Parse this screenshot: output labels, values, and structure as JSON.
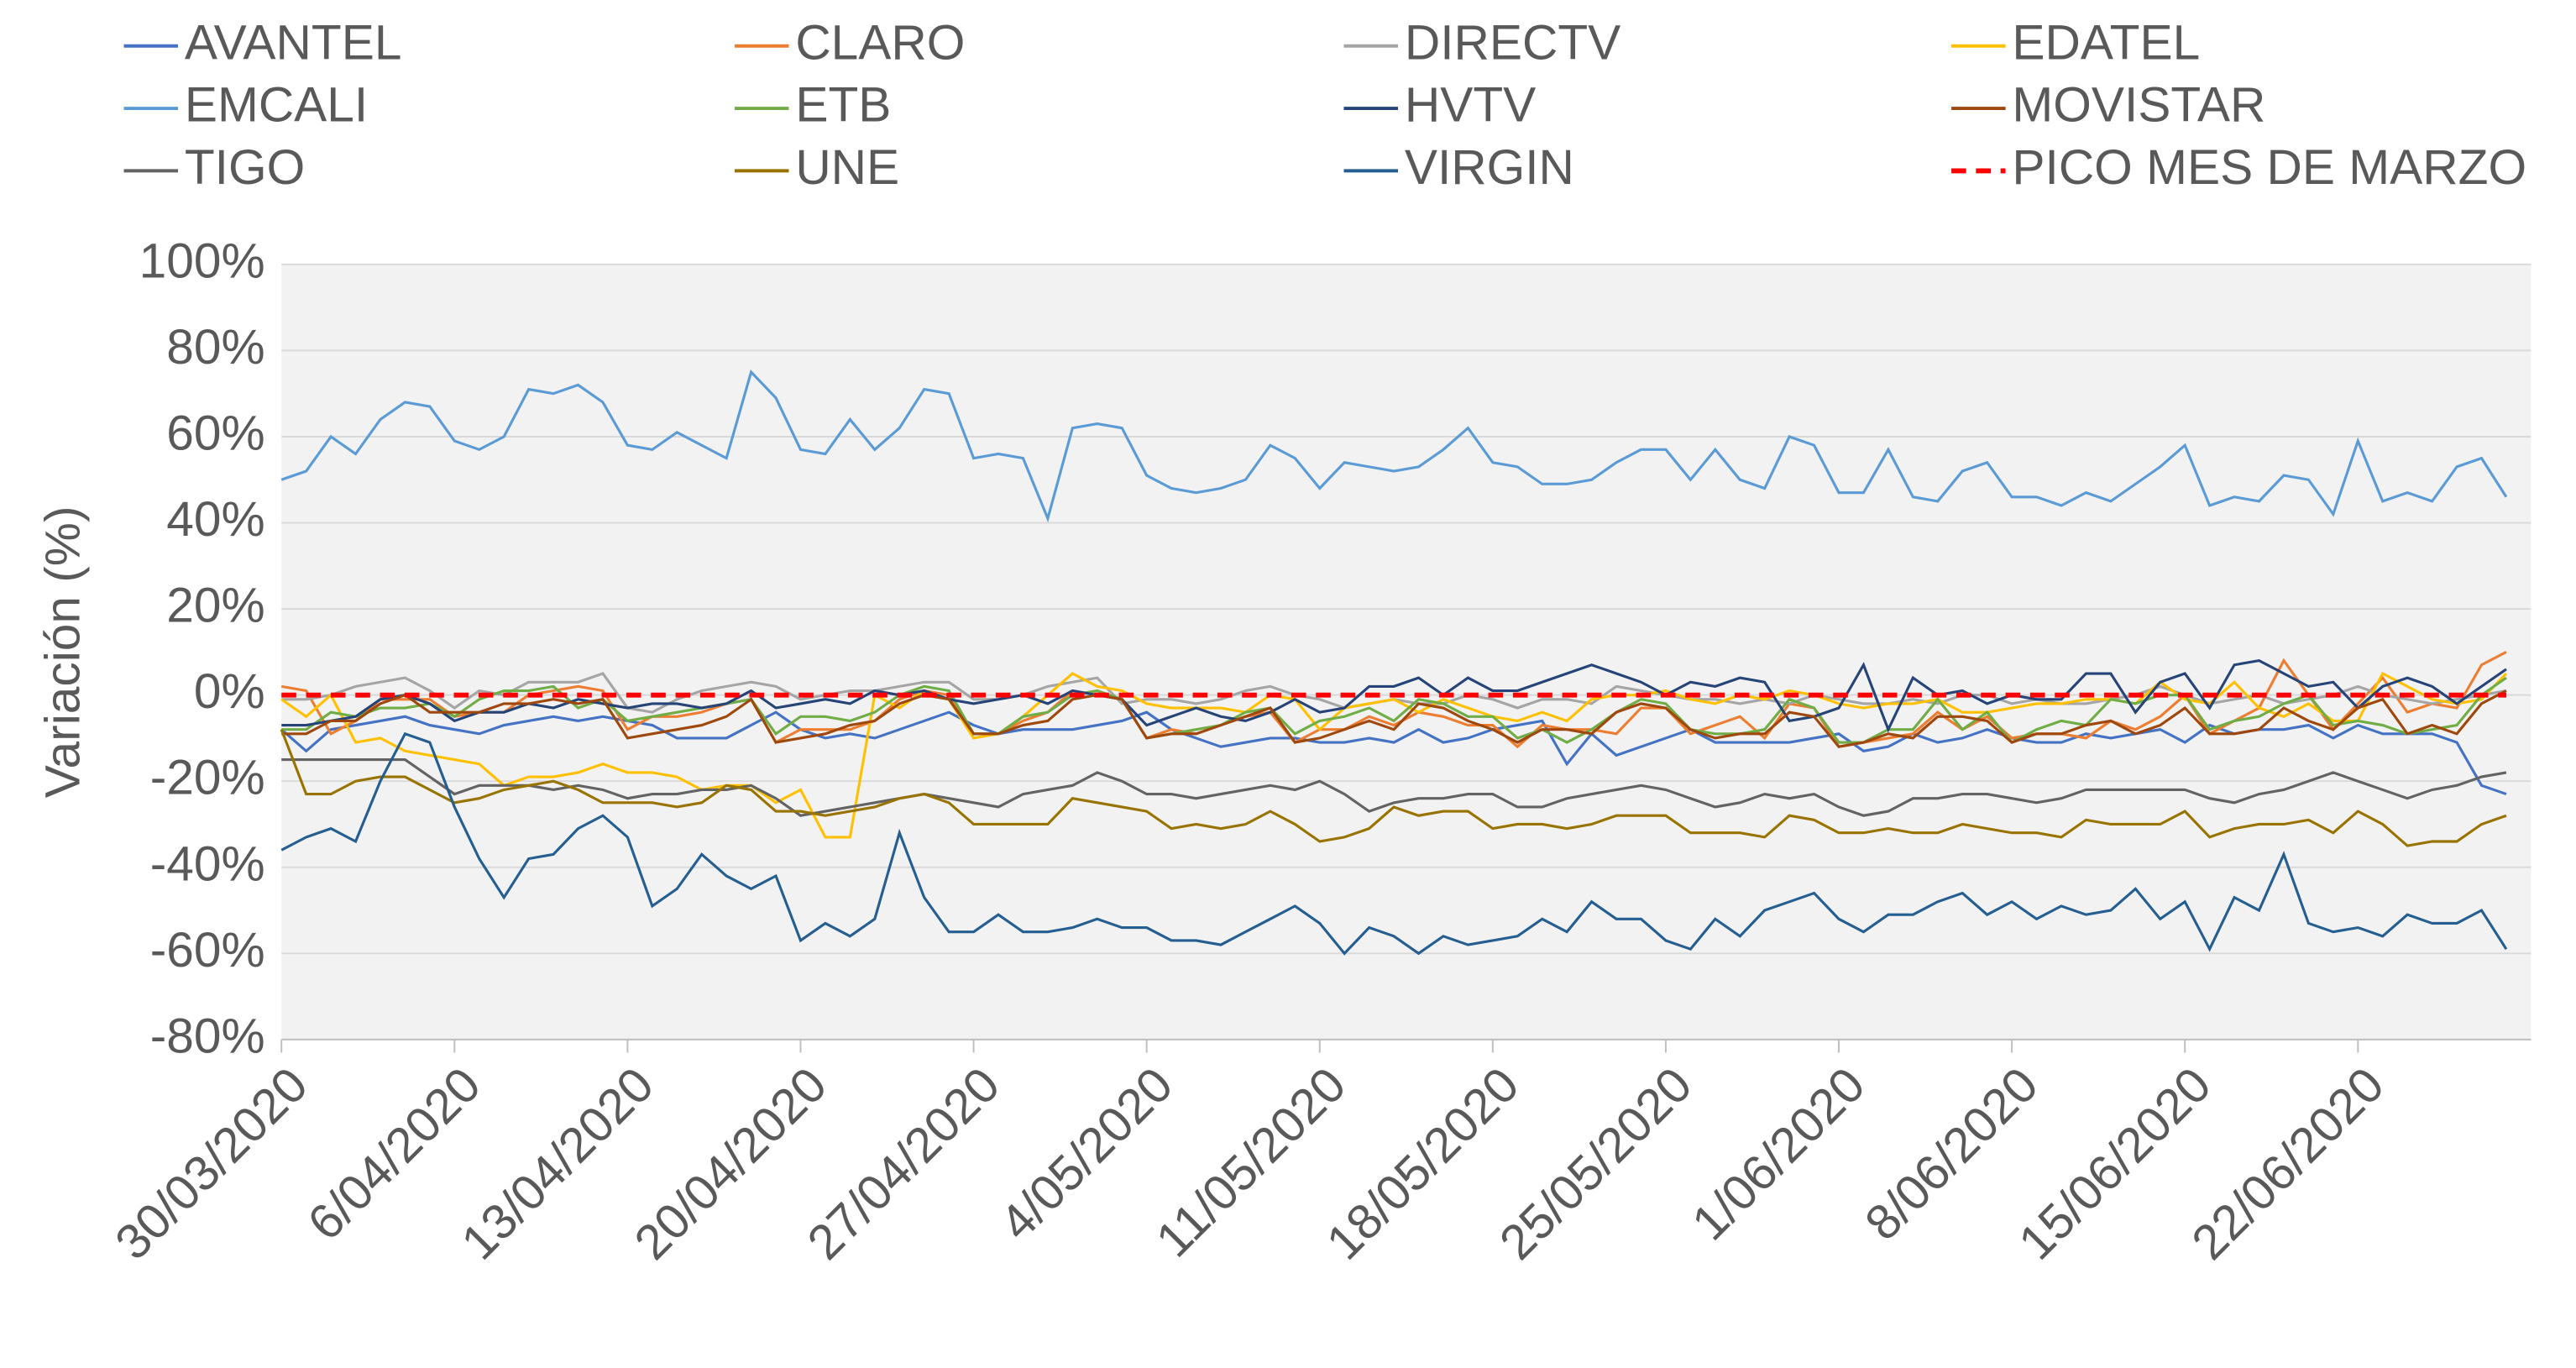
{
  "chart_data": {
    "type": "line",
    "y_label": "Variación (%)",
    "categories": [
      "30/03/2020",
      null,
      null,
      null,
      null,
      null,
      null,
      "6/04/2020",
      null,
      null,
      null,
      null,
      null,
      null,
      "13/04/2020",
      null,
      null,
      null,
      null,
      null,
      null,
      "20/04/2020",
      null,
      null,
      null,
      null,
      null,
      null,
      "27/04/2020",
      null,
      null,
      null,
      null,
      null,
      null,
      "4/05/2020",
      null,
      null,
      null,
      null,
      null,
      null,
      "11/05/2020",
      null,
      null,
      null,
      null,
      null,
      null,
      "18/05/2020",
      null,
      null,
      null,
      null,
      null,
      null,
      "25/05/2020",
      null,
      null,
      null,
      null,
      null,
      null,
      "1/06/2020",
      null,
      null,
      null,
      null,
      null,
      null,
      "8/06/2020",
      null,
      null,
      null,
      null,
      null,
      null,
      "15/06/2020",
      null,
      null,
      null,
      null,
      null,
      null,
      "22/06/2020",
      null,
      null,
      null,
      null,
      null,
      null
    ],
    "ylim": [
      -80,
      100
    ],
    "yticks": [
      {
        "value": -80,
        "label": "-80%"
      },
      {
        "value": -60,
        "label": "-60%"
      },
      {
        "value": -40,
        "label": "-40%"
      },
      {
        "value": -20,
        "label": "-20%"
      },
      {
        "value": 0,
        "label": "0%"
      },
      {
        "value": 20,
        "label": "20%"
      },
      {
        "value": 40,
        "label": "40%"
      },
      {
        "value": 60,
        "label": "60%"
      },
      {
        "value": 80,
        "label": "80%"
      },
      {
        "value": 100,
        "label": "100%"
      }
    ],
    "grid": true,
    "legend": "top",
    "series": [
      {
        "name": "AVANTEL",
        "color": "#4472c4",
        "values": [
          -8,
          -13,
          -8,
          -7,
          -6,
          -5,
          -7,
          -8,
          -9,
          -7,
          -6,
          -5,
          -6,
          -5,
          -6,
          -7,
          -10,
          -10,
          -10,
          -7,
          -4,
          -8,
          -10,
          -9,
          -10,
          -8,
          -6,
          -4,
          -7,
          -9,
          -8,
          -8,
          -8,
          -7,
          -6,
          -4,
          -8,
          -10,
          -12,
          -11,
          -10,
          -10,
          -11,
          -11,
          -10,
          -11,
          -8,
          -11,
          -10,
          -8,
          -7,
          -6,
          -16,
          -9,
          -14,
          -12,
          -10,
          -8,
          -11,
          -11,
          -11,
          -11,
          -10,
          -9,
          -13,
          -12,
          -9,
          -11,
          -10,
          -8,
          -10,
          -11,
          -11,
          -9,
          -10,
          -9,
          -8,
          -11,
          -7,
          -9,
          -8,
          -8,
          -7,
          -10,
          -7,
          -9,
          -9,
          -9,
          -11,
          -21,
          -23
        ]
      },
      {
        "name": "CLARO",
        "color": "#ed7d31",
        "values": [
          2,
          1,
          -9,
          -6,
          -1,
          -1,
          -1,
          -5,
          -4,
          -4,
          0,
          1,
          2,
          1,
          -8,
          -5,
          -5,
          -4,
          -2,
          -1,
          -11,
          -8,
          -8,
          -8,
          -6,
          -1,
          1,
          0,
          -9,
          -9,
          -6,
          -4,
          1,
          0,
          -1,
          -10,
          -8,
          -9,
          -7,
          -5,
          -4,
          -11,
          -8,
          -8,
          -5,
          -7,
          -4,
          -5,
          -7,
          -7,
          -12,
          -7,
          -8,
          -8,
          -9,
          -3,
          -3,
          -9,
          -7,
          -5,
          -10,
          -2,
          -3,
          -12,
          -11,
          -10,
          -9,
          -4,
          -8,
          -5,
          -10,
          -9,
          -9,
          -10,
          -6,
          -8,
          -5,
          0,
          -9,
          -6,
          -3,
          8,
          0,
          -8,
          -2,
          4,
          -4,
          -2,
          -3,
          7,
          10
        ]
      },
      {
        "name": "DIRECTV",
        "color": "#a5a5a5",
        "values": [
          -1,
          -1,
          0,
          2,
          3,
          4,
          1,
          -3,
          1,
          0,
          3,
          3,
          3,
          5,
          -3,
          -4,
          -1,
          1,
          2,
          3,
          2,
          -1,
          0,
          1,
          1,
          2,
          3,
          3,
          -1,
          -1,
          0,
          2,
          3,
          4,
          -2,
          -1,
          -1,
          -2,
          -1,
          1,
          2,
          0,
          -1,
          -3,
          -2,
          -1,
          -2,
          -2,
          0,
          -1,
          -3,
          -1,
          -1,
          -2,
          2,
          1,
          0,
          -1,
          -1,
          -2,
          -1,
          -2,
          0,
          -1,
          -2,
          -2,
          -1,
          -2,
          0,
          0,
          -2,
          -1,
          -2,
          -2,
          -1,
          0,
          2,
          0,
          -2,
          -1,
          0,
          -2,
          -1,
          0,
          2,
          0,
          -1,
          -2,
          -1,
          0,
          1
        ]
      },
      {
        "name": "EDATEL",
        "color": "#ffc000",
        "values": [
          -1,
          -5,
          0,
          -11,
          -10,
          -13,
          -14,
          -15,
          -16,
          -21,
          -19,
          -19,
          -18,
          -16,
          -18,
          -18,
          -19,
          -22,
          -21,
          -21,
          -25,
          -22,
          -33,
          -33,
          0,
          -3,
          1,
          -1,
          -10,
          -9,
          -5,
          0,
          5,
          2,
          1,
          -2,
          -3,
          -3,
          -3,
          -4,
          0,
          -1,
          -8,
          -3,
          -2,
          -1,
          -4,
          -1,
          -3,
          -5,
          -6,
          -4,
          -6,
          -1,
          0,
          0,
          1,
          -1,
          -2,
          0,
          -1,
          1,
          0,
          -2,
          -3,
          -2,
          -2,
          -1,
          -4,
          -4,
          -3,
          -2,
          -2,
          -1,
          -1,
          -2,
          3,
          -1,
          -2,
          3,
          -3,
          -5,
          -2,
          -6,
          -6,
          5,
          2,
          -1,
          -2,
          -1,
          5
        ]
      },
      {
        "name": "EMCALI",
        "color": "#5b9bd5",
        "values": [
          50,
          52,
          60,
          56,
          64,
          68,
          67,
          59,
          57,
          60,
          71,
          70,
          72,
          68,
          58,
          57,
          61,
          58,
          55,
          75,
          69,
          57,
          56,
          64,
          57,
          62,
          71,
          70,
          55,
          56,
          55,
          41,
          62,
          63,
          62,
          51,
          48,
          47,
          48,
          50,
          58,
          55,
          48,
          54,
          53,
          52,
          53,
          57,
          62,
          54,
          53,
          49,
          49,
          50,
          54,
          57,
          57,
          50,
          57,
          50,
          48,
          60,
          58,
          47,
          47,
          57,
          46,
          45,
          52,
          54,
          46,
          46,
          44,
          47,
          45,
          49,
          53,
          58,
          44,
          46,
          45,
          51,
          50,
          42,
          59,
          45,
          47,
          45,
          53,
          55,
          46
        ]
      },
      {
        "name": "ETB",
        "color": "#70ad47",
        "values": [
          -8,
          -8,
          -4,
          -5,
          -3,
          -3,
          -2,
          -5,
          -1,
          1,
          1,
          2,
          -3,
          -1,
          -6,
          -5,
          -4,
          -3,
          -2,
          -1,
          -9,
          -5,
          -5,
          -6,
          -4,
          0,
          2,
          1,
          -9,
          -9,
          -5,
          -4,
          0,
          1,
          -1,
          -10,
          -9,
          -8,
          -7,
          -4,
          -3,
          -9,
          -6,
          -5,
          -3,
          -6,
          -1,
          -2,
          -5,
          -5,
          -10,
          -8,
          -11,
          -8,
          -4,
          -1,
          -2,
          -8,
          -9,
          -9,
          -8,
          -1,
          -3,
          -11,
          -11,
          -8,
          -8,
          -1,
          -8,
          -4,
          -11,
          -8,
          -6,
          -7,
          -1,
          -2,
          0,
          0,
          -8,
          -6,
          -5,
          -2,
          0,
          -7,
          -6,
          -7,
          -9,
          -8,
          -7,
          0,
          4
        ]
      },
      {
        "name": "HVTV",
        "color": "#264478",
        "values": [
          -7,
          -7,
          -6,
          -5,
          -1,
          0,
          -2,
          -6,
          -4,
          -4,
          -2,
          -3,
          -1,
          -2,
          -3,
          -2,
          -2,
          -3,
          -2,
          1,
          -3,
          -2,
          -1,
          -2,
          1,
          0,
          1,
          -1,
          -2,
          -1,
          0,
          -2,
          1,
          0,
          -1,
          -7,
          -5,
          -3,
          -5,
          -6,
          -4,
          -1,
          -4,
          -3,
          2,
          2,
          4,
          0,
          4,
          1,
          1,
          3,
          5,
          7,
          5,
          3,
          0,
          3,
          2,
          4,
          3,
          -6,
          -5,
          -3,
          7,
          -8,
          4,
          0,
          1,
          -2,
          0,
          -1,
          -1,
          5,
          5,
          -4,
          3,
          5,
          -3,
          7,
          8,
          5,
          2,
          3,
          -3,
          2,
          4,
          2,
          -2,
          2,
          6
        ]
      },
      {
        "name": "MOVISTAR",
        "color": "#9e480e",
        "values": [
          -9,
          -9,
          -6,
          -6,
          -2,
          0,
          -4,
          -4,
          -4,
          -2,
          -2,
          -1,
          -2,
          -1,
          -10,
          -9,
          -8,
          -7,
          -5,
          -1,
          -11,
          -10,
          -9,
          -7,
          -6,
          -2,
          0,
          -1,
          -9,
          -9,
          -7,
          -6,
          -1,
          0,
          -1,
          -10,
          -9,
          -9,
          -7,
          -5,
          -3,
          -11,
          -10,
          -8,
          -6,
          -8,
          -2,
          -3,
          -6,
          -8,
          -11,
          -8,
          -8,
          -9,
          -4,
          -2,
          -3,
          -8,
          -10,
          -9,
          -9,
          -4,
          -5,
          -12,
          -11,
          -9,
          -10,
          -5,
          -5,
          -6,
          -11,
          -9,
          -9,
          -7,
          -6,
          -9,
          -7,
          -3,
          -9,
          -9,
          -8,
          -3,
          -6,
          -8,
          -3,
          -1,
          -9,
          -7,
          -9,
          -2,
          1
        ]
      },
      {
        "name": "TIGO",
        "color": "#636363",
        "values": [
          -15,
          -15,
          -15,
          -15,
          -15,
          -15,
          -19,
          -23,
          -21,
          -21,
          -21,
          -22,
          -21,
          -22,
          -24,
          -23,
          -23,
          -22,
          -22,
          -21,
          -24,
          -28,
          -27,
          -26,
          -25,
          -24,
          -23,
          -24,
          -25,
          -26,
          -23,
          -22,
          -21,
          -18,
          -20,
          -23,
          -23,
          -24,
          -23,
          -22,
          -21,
          -22,
          -20,
          -23,
          -27,
          -25,
          -24,
          -24,
          -23,
          -23,
          -26,
          -26,
          -24,
          -23,
          -22,
          -21,
          -22,
          -24,
          -26,
          -25,
          -23,
          -24,
          -23,
          -26,
          -28,
          -27,
          -24,
          -24,
          -23,
          -23,
          -24,
          -25,
          -24,
          -22,
          -22,
          -22,
          -22,
          -22,
          -24,
          -25,
          -23,
          -22,
          -20,
          -18,
          -20,
          -22,
          -24,
          -22,
          -21,
          -19,
          -18
        ]
      },
      {
        "name": "UNE",
        "color": "#997300",
        "values": [
          -8,
          -23,
          -23,
          -20,
          -19,
          -19,
          -22,
          -25,
          -24,
          -22,
          -21,
          -20,
          -22,
          -25,
          -25,
          -25,
          -26,
          -25,
          -21,
          -22,
          -27,
          -27,
          -28,
          -27,
          -26,
          -24,
          -23,
          -25,
          -30,
          -30,
          -30,
          -30,
          -24,
          -25,
          -26,
          -27,
          -31,
          -30,
          -31,
          -30,
          -27,
          -30,
          -34,
          -33,
          -31,
          -26,
          -28,
          -27,
          -27,
          -31,
          -30,
          -30,
          -31,
          -30,
          -28,
          -28,
          -28,
          -32,
          -32,
          -32,
          -33,
          -28,
          -29,
          -32,
          -32,
          -31,
          -32,
          -32,
          -30,
          -31,
          -32,
          -32,
          -33,
          -29,
          -30,
          -30,
          -30,
          -27,
          -33,
          -31,
          -30,
          -30,
          -29,
          -32,
          -27,
          -30,
          -35,
          -34,
          -34,
          -30,
          -28
        ]
      },
      {
        "name": "VIRGIN",
        "color": "#255e91",
        "values": [
          -36,
          -33,
          -31,
          -34,
          -20,
          -9,
          -11,
          -26,
          -38,
          -47,
          -38,
          -37,
          -31,
          -28,
          -33,
          -49,
          -45,
          -37,
          -42,
          -45,
          -42,
          -57,
          -53,
          -56,
          -52,
          -32,
          -47,
          -55,
          -55,
          -51,
          -55,
          -55,
          -54,
          -52,
          -54,
          -54,
          -57,
          -57,
          -58,
          -55,
          -52,
          -49,
          -53,
          -60,
          -54,
          -56,
          -60,
          -56,
          -58,
          -57,
          -56,
          -52,
          -55,
          -48,
          -52,
          -52,
          -57,
          -59,
          -52,
          -56,
          -50,
          -48,
          -46,
          -52,
          -55,
          -51,
          -51,
          -48,
          -46,
          -51,
          -48,
          -52,
          -49,
          -51,
          -50,
          -45,
          -52,
          -48,
          -59,
          -47,
          -50,
          -37,
          -53,
          -55,
          -54,
          -56,
          -51,
          -53,
          -53,
          -50,
          -59
        ]
      },
      {
        "name": "PICO MES DE MARZO",
        "color": "#ff0000",
        "dashed": true,
        "values": [
          0,
          0,
          0,
          0,
          0,
          0,
          0,
          0,
          0,
          0,
          0,
          0,
          0,
          0,
          0,
          0,
          0,
          0,
          0,
          0,
          0,
          0,
          0,
          0,
          0,
          0,
          0,
          0,
          0,
          0,
          0,
          0,
          0,
          0,
          0,
          0,
          0,
          0,
          0,
          0,
          0,
          0,
          0,
          0,
          0,
          0,
          0,
          0,
          0,
          0,
          0,
          0,
          0,
          0,
          0,
          0,
          0,
          0,
          0,
          0,
          0,
          0,
          0,
          0,
          0,
          0,
          0,
          0,
          0,
          0,
          0,
          0,
          0,
          0,
          0,
          0,
          0,
          0,
          0,
          0,
          0,
          0,
          0,
          0,
          0,
          0,
          0,
          0,
          0,
          0,
          0
        ]
      }
    ]
  }
}
